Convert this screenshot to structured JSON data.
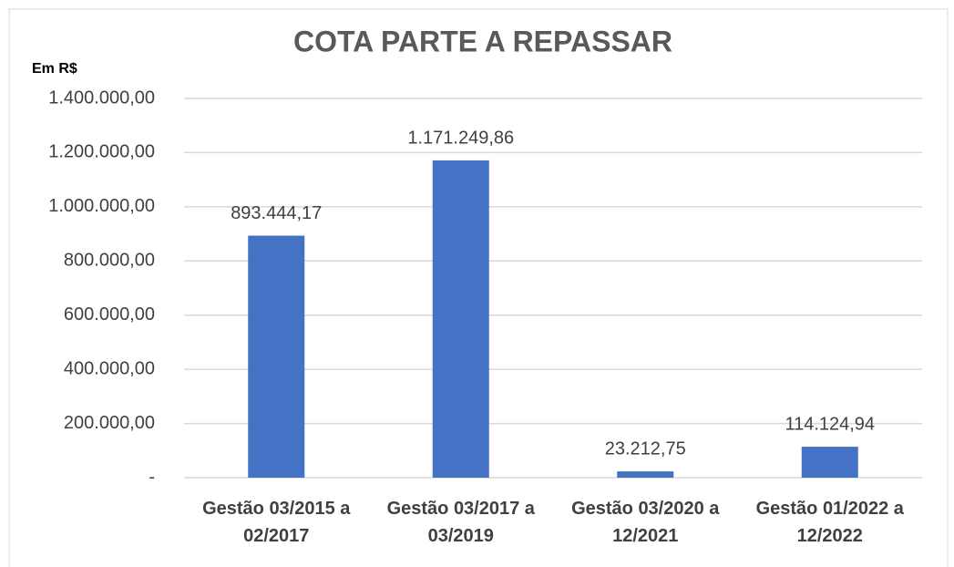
{
  "chart_data": {
    "type": "bar",
    "title": "COTA PARTE A REPASSAR",
    "y_axis_label": "Em R$",
    "categories": [
      "Gestão 03/2015 a 02/2017",
      "Gestão 03/2017 a 03/2019",
      "Gestão 03/2020 a 12/2021",
      "Gestão 01/2022 a 12/2022"
    ],
    "values": [
      893444.17,
      1171249.86,
      23212.75,
      114124.94
    ],
    "value_labels": [
      "893.444,17",
      "1.171.249,86",
      "23.212,75",
      "114.124,94"
    ],
    "color": "#4472c4",
    "ylim": [
      0,
      1400000
    ],
    "yticks": [
      {
        "value": 0,
        "label": "-"
      },
      {
        "value": 200000,
        "label": "200.000,00"
      },
      {
        "value": 400000,
        "label": "400.000,00"
      },
      {
        "value": 600000,
        "label": "600.000,00"
      },
      {
        "value": 800000,
        "label": "800.000,00"
      },
      {
        "value": 1000000,
        "label": "1.000.000,00"
      },
      {
        "value": 1200000,
        "label": "1.200.000,00"
      },
      {
        "value": 1400000,
        "label": "1.400.000,00"
      }
    ],
    "grid": true
  }
}
